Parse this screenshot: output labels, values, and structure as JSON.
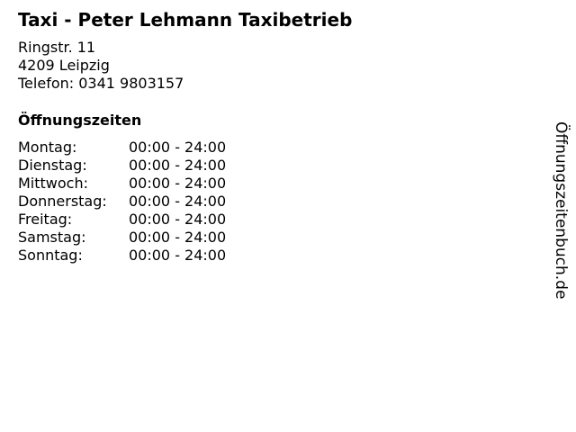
{
  "business": {
    "name": "Taxi - Peter Lehmann Taxibetrieb",
    "street": "Ringstr. 11",
    "city": "4209 Leipzig",
    "phone": "Telefon: 0341 9803157"
  },
  "hours": {
    "heading": "Öffnungszeiten",
    "rows": [
      {
        "day": "Montag:",
        "time": "00:00 - 24:00"
      },
      {
        "day": "Dienstag:",
        "time": "00:00 - 24:00"
      },
      {
        "day": "Mittwoch:",
        "time": "00:00 - 24:00"
      },
      {
        "day": "Donnerstag:",
        "time": "00:00 - 24:00"
      },
      {
        "day": "Freitag:",
        "time": "00:00 - 24:00"
      },
      {
        "day": "Samstag:",
        "time": "00:00 - 24:00"
      },
      {
        "day": "Sonntag:",
        "time": "00:00 - 24:00"
      }
    ]
  },
  "watermark": "Öffnungszeitenbuch.de"
}
